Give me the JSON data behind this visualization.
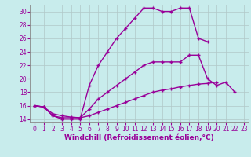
{
  "xlabel": "Windchill (Refroidissement éolien,°C)",
  "background_color": "#c8ecec",
  "line_color": "#990099",
  "grid_color": "#b0c8c8",
  "xlim": [
    -0.5,
    23.5
  ],
  "ylim": [
    13.5,
    31.0
  ],
  "xticks": [
    0,
    1,
    2,
    3,
    4,
    5,
    6,
    7,
    8,
    9,
    10,
    11,
    12,
    13,
    14,
    15,
    16,
    17,
    18,
    19,
    20,
    21,
    22,
    23
  ],
  "yticks": [
    14,
    16,
    18,
    20,
    22,
    24,
    26,
    28,
    30
  ],
  "line1_x": [
    0,
    1,
    2,
    3,
    4,
    5,
    6,
    7,
    8,
    9,
    10,
    11,
    12,
    13,
    14,
    15,
    16,
    17,
    18,
    19,
    20,
    21,
    22,
    23
  ],
  "line1_y": [
    16,
    15.8,
    14.5,
    14.0,
    14.0,
    14.0,
    19.0,
    22.0,
    24.0,
    26.0,
    27.5,
    29.0,
    30.5,
    30.5,
    30.0,
    30.0,
    30.5,
    30.5,
    26.0,
    25.5,
    null,
    null,
    null,
    null
  ],
  "line2_x": [
    0,
    1,
    2,
    3,
    4,
    5,
    6,
    7,
    8,
    9,
    10,
    11,
    12,
    13,
    14,
    15,
    16,
    17,
    18,
    19,
    20,
    21,
    22,
    23
  ],
  "line2_y": [
    16,
    15.8,
    14.5,
    14.2,
    14.2,
    14.2,
    15.5,
    17.0,
    18.0,
    19.0,
    20.0,
    21.0,
    22.0,
    22.5,
    22.5,
    22.5,
    22.5,
    23.5,
    23.5,
    20.0,
    19.0,
    19.5,
    18.0,
    null
  ],
  "line3_x": [
    0,
    1,
    2,
    3,
    4,
    5,
    6,
    7,
    8,
    9,
    10,
    11,
    12,
    13,
    14,
    15,
    16,
    17,
    18,
    19,
    20,
    21,
    22,
    23
  ],
  "line3_y": [
    16,
    15.8,
    14.8,
    14.5,
    14.3,
    14.2,
    14.5,
    15.0,
    15.5,
    16.0,
    16.5,
    17.0,
    17.5,
    18.0,
    18.3,
    18.5,
    18.8,
    19.0,
    19.2,
    19.3,
    19.5,
    null,
    null,
    null
  ],
  "marker": "+",
  "markersize": 3,
  "linewidth": 1.0,
  "tick_fontsize": 5.5,
  "label_fontsize": 6.5
}
